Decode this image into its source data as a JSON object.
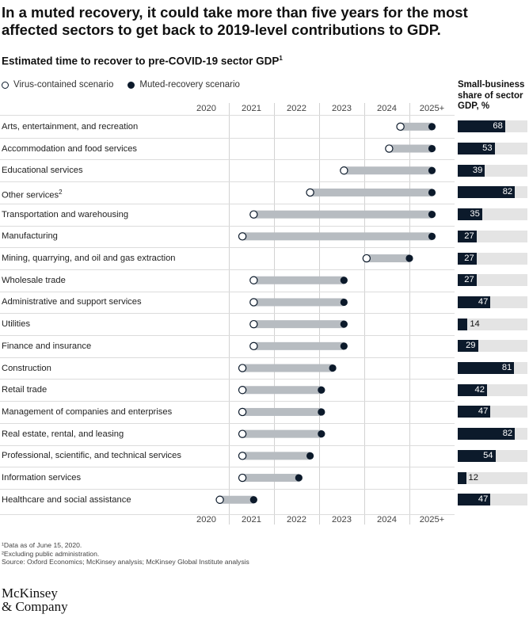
{
  "title": "In a muted recovery, it could take more than five years for the most affected sectors to get back to 2019-level contributions to GDP.",
  "subtitle": "Estimated time to recover to pre-COVID-19 sector GDP",
  "subtitle_note": "1",
  "legend": {
    "open": "Virus-contained scenario",
    "filled": "Muted-recovery scenario"
  },
  "share_title": "Small-business share of sector GDP, %",
  "year_labels": [
    "2020",
    "2021",
    "2022",
    "2023",
    "2024",
    "2025+"
  ],
  "notes": [
    "¹Data as of June 15, 2020.",
    "²Excluding public administration.",
    " Source: Oxford Economics; McKinsey analysis; McKinsey Global Institute analysis"
  ],
  "logo": [
    "McKinsey",
    "& Company"
  ],
  "colors": {
    "navy": "#0c1a2b",
    "range": "#b7bcc1",
    "track": "#e4e4e4"
  },
  "chart_data": {
    "type": "dumbbell",
    "x_axis": {
      "categories": [
        "2020",
        "2021",
        "2022",
        "2023",
        "2024",
        "2025+"
      ],
      "range": [
        2020,
        2025
      ]
    },
    "series_names": [
      "Virus-contained scenario",
      "Muted-recovery scenario"
    ],
    "rows": [
      {
        "sector": "Arts, entertainment, and recreation",
        "note": "",
        "contained": 2024.3,
        "muted": 2025,
        "share": 68
      },
      {
        "sector": "Accommodation and food services",
        "note": "",
        "contained": 2024.05,
        "muted": 2025,
        "share": 53
      },
      {
        "sector": "Educational services",
        "note": "",
        "contained": 2023.05,
        "muted": 2025,
        "share": 39
      },
      {
        "sector": "Other services",
        "note": "2",
        "contained": 2022.3,
        "muted": 2025,
        "share": 82
      },
      {
        "sector": "Transportation and warehousing",
        "note": "",
        "contained": 2021.05,
        "muted": 2025,
        "share": 35
      },
      {
        "sector": "Manufacturing",
        "note": "",
        "contained": 2020.8,
        "muted": 2025,
        "share": 27
      },
      {
        "sector": "Mining, quarrying, and oil and gas extraction",
        "note": "",
        "contained": 2023.55,
        "muted": 2024.5,
        "share": 27
      },
      {
        "sector": "Wholesale trade",
        "note": "",
        "contained": 2021.05,
        "muted": 2023.05,
        "share": 27
      },
      {
        "sector": "Administrative and support services",
        "note": "",
        "contained": 2021.05,
        "muted": 2023.05,
        "share": 47
      },
      {
        "sector": "Utilities",
        "note": "",
        "contained": 2021.05,
        "muted": 2023.05,
        "share": 14
      },
      {
        "sector": "Finance and insurance",
        "note": "",
        "contained": 2021.05,
        "muted": 2023.05,
        "share": 29
      },
      {
        "sector": "Construction",
        "note": "",
        "contained": 2020.8,
        "muted": 2022.8,
        "share": 81
      },
      {
        "sector": "Retail trade",
        "note": "",
        "contained": 2020.8,
        "muted": 2022.55,
        "share": 42
      },
      {
        "sector": "Management of companies and enterprises",
        "note": "",
        "contained": 2020.8,
        "muted": 2022.55,
        "share": 47
      },
      {
        "sector": "Real estate, rental, and leasing",
        "note": "",
        "contained": 2020.8,
        "muted": 2022.55,
        "share": 82
      },
      {
        "sector": "Professional, scientific, and technical services",
        "note": "",
        "contained": 2020.8,
        "muted": 2022.3,
        "share": 54
      },
      {
        "sector": "Information services",
        "note": "",
        "contained": 2020.8,
        "muted": 2022.05,
        "share": 12
      },
      {
        "sector": "Healthcare and social assistance",
        "note": "",
        "contained": 2020.3,
        "muted": 2021.05,
        "share": 47
      }
    ]
  }
}
